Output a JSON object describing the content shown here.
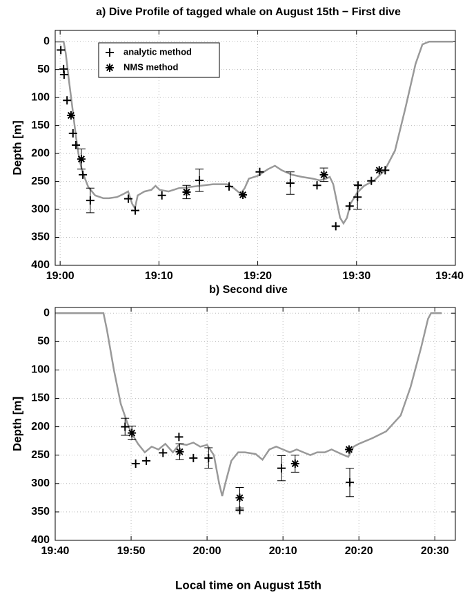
{
  "chart_data": [
    {
      "type": "line",
      "title": "a) Dive Profile of tagged whale on August 15th − First dive",
      "ylabel": "Depth [m]",
      "xlim": [
        1139.5,
        1180
      ],
      "ylim": [
        -20,
        400
      ],
      "y_reversed": true,
      "grid": true,
      "legend": true,
      "legend_position": "upper left",
      "xticks": [
        {
          "value": 1140,
          "label": "19:00"
        },
        {
          "value": 1150,
          "label": "19:10"
        },
        {
          "value": 1160,
          "label": "19:20"
        },
        {
          "value": 1170,
          "label": "19:30"
        },
        {
          "value": 1180,
          "label": "19:40"
        }
      ],
      "yticks": [
        0,
        50,
        100,
        150,
        200,
        250,
        300,
        350,
        400
      ],
      "profile": {
        "color": "#999999",
        "x": [
          1139.51,
          1140.35,
          1140.56,
          1140.9,
          1141.25,
          1141.6,
          1141.94,
          1142.29,
          1142.85,
          1143.54,
          1144.38,
          1144.93,
          1145.76,
          1146.46,
          1146.88,
          1147.29,
          1147.57,
          1147.85,
          1148.54,
          1149.24,
          1149.65,
          1150.07,
          1150.97,
          1152.01,
          1153.06,
          1154.1,
          1155.49,
          1156.88,
          1157.57,
          1158.26,
          1158.68,
          1159.1,
          1160,
          1161.04,
          1161.74,
          1162.43,
          1163.47,
          1164.51,
          1165.56,
          1166.25,
          1166.94,
          1167.29,
          1167.64,
          1167.99,
          1168.33,
          1168.68,
          1169.03,
          1169.38,
          1170.07,
          1170.76,
          1171.81,
          1172.85,
          1173.89,
          1174.93,
          1175.97,
          1176.67,
          1177.36,
          1179.79
        ],
        "values": [
          0,
          0,
          20,
          70,
          120,
          170,
          210,
          235,
          260,
          275,
          280,
          280,
          278,
          272,
          268,
          290,
          298,
          275,
          268,
          265,
          258,
          265,
          268,
          262,
          260,
          258,
          255,
          255,
          262,
          272,
          262,
          245,
          240,
          228,
          222,
          230,
          238,
          242,
          245,
          248,
          245,
          242,
          255,
          285,
          315,
          325,
          315,
          290,
          270,
          258,
          248,
          230,
          195,
          120,
          40,
          5,
          0,
          0
        ]
      },
      "series": [
        {
          "name": "analytic method",
          "color": "#000000",
          "marker": "plus",
          "x": [
            1140.07,
            1140.35,
            1140.4,
            1140.7,
            1141.3,
            1141.6,
            1142.3,
            1143.05,
            1146.9,
            1147.6,
            1150.3,
            1154.1,
            1157.1,
            1160.2,
            1163.3,
            1166,
            1167.9,
            1169.3,
            1170.1,
            1170.15,
            1171.5,
            1172.9
          ],
          "values": [
            15,
            49,
            59,
            105,
            164,
            185,
            238,
            284,
            281,
            302,
            275,
            248,
            259,
            233,
            253,
            257,
            330,
            294,
            278,
            257,
            249,
            230
          ],
          "errors": [
            null,
            null,
            null,
            null,
            null,
            null,
            null,
            22,
            null,
            null,
            null,
            20,
            null,
            null,
            20,
            null,
            null,
            null,
            22,
            null,
            null,
            null
          ]
        },
        {
          "name": "NMS method",
          "color": "#000000",
          "marker": "star",
          "x": [
            1141.1,
            1142.15,
            1152.8,
            1158.5,
            1166.7,
            1172.3
          ],
          "values": [
            132,
            210,
            269,
            274,
            238,
            230
          ],
          "errors": [
            null,
            18,
            12,
            null,
            12,
            null
          ]
        }
      ]
    },
    {
      "type": "line",
      "title": "b) Second dive",
      "ylabel": "Depth [m]",
      "xlabel": "Local time on August 15th",
      "xlim": [
        1180,
        1232.7
      ],
      "ylim": [
        -10,
        400
      ],
      "y_reversed": true,
      "grid": true,
      "legend": false,
      "xticks": [
        {
          "value": 1180,
          "label": "19:40"
        },
        {
          "value": 1190,
          "label": "19:50"
        },
        {
          "value": 1200,
          "label": "20:00"
        },
        {
          "value": 1210,
          "label": "20:10"
        },
        {
          "value": 1220,
          "label": "20:20"
        },
        {
          "value": 1230,
          "label": "20:30"
        }
      ],
      "yticks": [
        0,
        50,
        100,
        150,
        200,
        250,
        300,
        350,
        400
      ],
      "profile": {
        "color": "#999999",
        "x": [
          1180,
          1186.36,
          1186.82,
          1187.73,
          1188.64,
          1189.55,
          1190,
          1190.9,
          1191.8,
          1192.7,
          1193.6,
          1194.5,
          1195.5,
          1196.4,
          1197.3,
          1198.2,
          1199.1,
          1200,
          1200.9,
          1201.6,
          1202,
          1202.4,
          1203.2,
          1204.1,
          1205,
          1206.4,
          1207.3,
          1208.2,
          1209.1,
          1210,
          1210.9,
          1211.8,
          1212.7,
          1213.6,
          1214.5,
          1215.5,
          1216.4,
          1217.7,
          1218.6,
          1219.3,
          1220,
          1221.8,
          1223.6,
          1225.5,
          1226.8,
          1228.2,
          1229.1,
          1229.5,
          1230.9
        ],
        "values": [
          0,
          0,
          30,
          100,
          160,
          195,
          210,
          230,
          245,
          235,
          240,
          230,
          245,
          230,
          232,
          228,
          235,
          232,
          250,
          300,
          322,
          300,
          260,
          245,
          245,
          248,
          258,
          240,
          235,
          240,
          245,
          240,
          245,
          250,
          245,
          245,
          240,
          248,
          253,
          235,
          230,
          220,
          208,
          180,
          130,
          60,
          10,
          0,
          0
        ]
      },
      "series": [
        {
          "name": "analytic method",
          "color": "#000000",
          "marker": "plus",
          "x": [
            1189.2,
            1190.6,
            1192,
            1194.2,
            1196.3,
            1198.2,
            1200.2,
            1204.3,
            1209.8,
            1218.8
          ],
          "values": [
            200,
            265,
            260,
            246,
            218,
            255,
            255,
            347,
            273,
            298
          ],
          "errors": [
            15,
            null,
            null,
            null,
            null,
            null,
            18,
            null,
            22,
            25
          ]
        },
        {
          "name": "NMS method",
          "color": "#000000",
          "marker": "star",
          "x": [
            1190.1,
            1196.4,
            1204.3,
            1211.6,
            1218.7
          ],
          "values": [
            211,
            244,
            325,
            265,
            240
          ],
          "errors": [
            12,
            14,
            18,
            15,
            null
          ]
        }
      ]
    }
  ]
}
